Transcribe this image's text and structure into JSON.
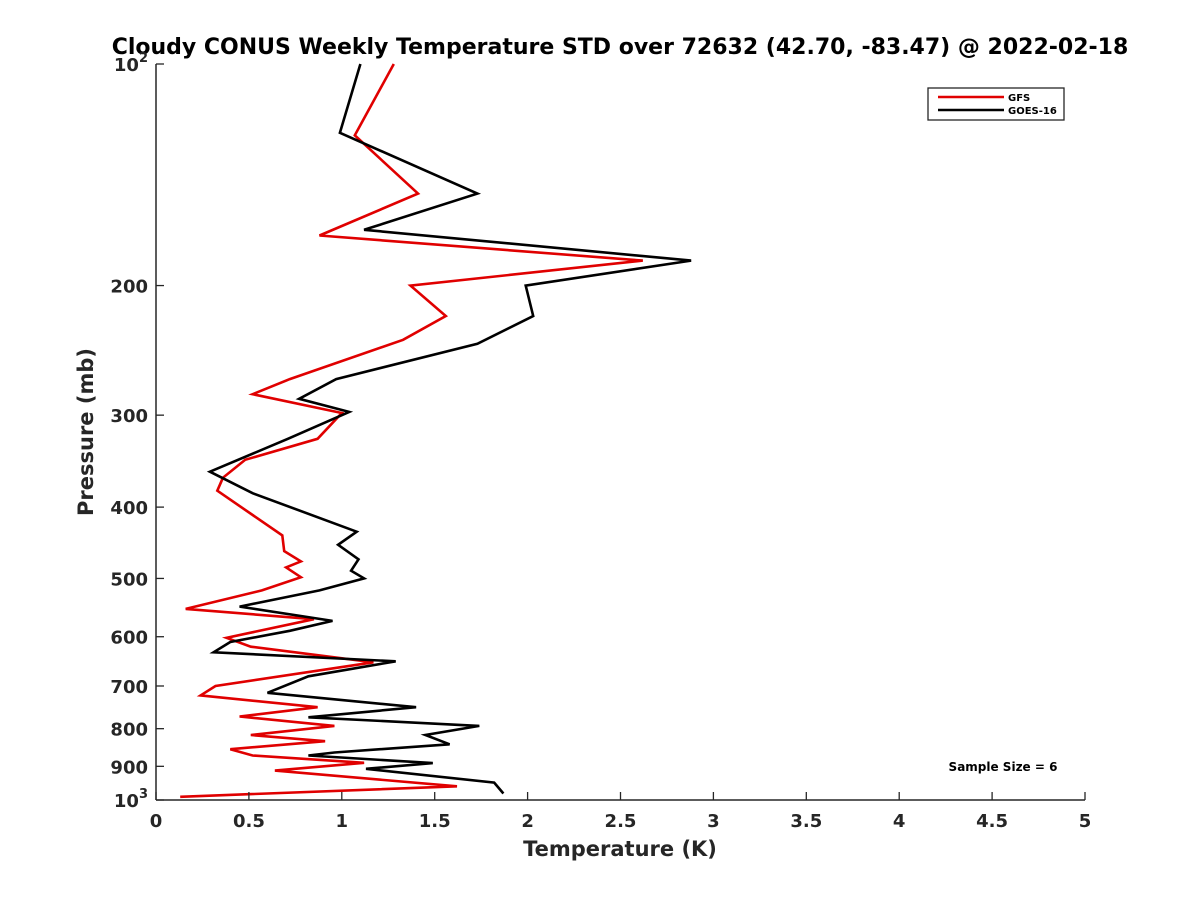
{
  "chart_data": {
    "type": "line",
    "title": "Cloudy CONUS Weekly Temperature STD over 72632 (42.70, -83.47) @ 2022-02-18",
    "xlabel": "Temperature (K)",
    "ylabel": "Pressure (mb)",
    "xlim": [
      0,
      5
    ],
    "ylim": [
      100,
      1000
    ],
    "y_scale": "log",
    "y_reversed": true,
    "x_ticks": [
      0,
      0.5,
      1,
      1.5,
      2,
      2.5,
      3,
      3.5,
      4,
      4.5,
      5
    ],
    "x_tick_labels": [
      "0",
      "0.5",
      "1",
      "1.5",
      "2",
      "2.5",
      "3",
      "3.5",
      "4",
      "4.5",
      "5"
    ],
    "y_ticks": [
      100,
      200,
      300,
      400,
      500,
      600,
      700,
      800,
      900,
      1000
    ],
    "y_tick_labels": [
      {
        "base": "10",
        "exp": "2"
      },
      {
        "base": "200",
        "exp": ""
      },
      {
        "base": "300",
        "exp": ""
      },
      {
        "base": "400",
        "exp": ""
      },
      {
        "base": "500",
        "exp": ""
      },
      {
        "base": "600",
        "exp": ""
      },
      {
        "base": "700",
        "exp": ""
      },
      {
        "base": "800",
        "exp": ""
      },
      {
        "base": "900",
        "exp": ""
      },
      {
        "base": "10",
        "exp": "3"
      }
    ],
    "grid": false,
    "legend_position": "top-right",
    "annotation": "Sample Size = 6",
    "series": [
      {
        "name": "GFS",
        "color": "#e00000",
        "points": [
          [
            1.28,
            100
          ],
          [
            1.07,
            125
          ],
          [
            1.41,
            150
          ],
          [
            0.88,
            171
          ],
          [
            2.62,
            185
          ],
          [
            1.37,
            200
          ],
          [
            1.56,
            220
          ],
          [
            1.33,
            237
          ],
          [
            0.72,
            268
          ],
          [
            0.52,
            281
          ],
          [
            1.0,
            298
          ],
          [
            0.87,
            323
          ],
          [
            0.48,
            345
          ],
          [
            0.36,
            365
          ],
          [
            0.33,
            380
          ],
          [
            0.68,
            437
          ],
          [
            0.69,
            459
          ],
          [
            0.78,
            474
          ],
          [
            0.7,
            483
          ],
          [
            0.78,
            498
          ],
          [
            0.57,
            519
          ],
          [
            0.16,
            550
          ],
          [
            0.85,
            568
          ],
          [
            0.38,
            602
          ],
          [
            0.51,
            619
          ],
          [
            1.17,
            650
          ],
          [
            0.32,
            700
          ],
          [
            0.24,
            721
          ],
          [
            0.87,
            748
          ],
          [
            0.45,
            770
          ],
          [
            0.96,
            793
          ],
          [
            0.51,
            816
          ],
          [
            0.91,
            832
          ],
          [
            0.4,
            853
          ],
          [
            0.52,
            870
          ],
          [
            1.12,
            890
          ],
          [
            0.64,
            912
          ],
          [
            1.62,
            958
          ],
          [
            0.13,
            990
          ]
        ]
      },
      {
        "name": "GOES-16",
        "color": "#000000",
        "points": [
          [
            1.1,
            100
          ],
          [
            0.99,
            124
          ],
          [
            1.73,
            150
          ],
          [
            1.12,
            168
          ],
          [
            2.88,
            185
          ],
          [
            1.99,
            200
          ],
          [
            2.03,
            220
          ],
          [
            1.73,
            240
          ],
          [
            0.97,
            268
          ],
          [
            0.77,
            285
          ],
          [
            1.04,
            297
          ],
          [
            0.71,
            323
          ],
          [
            0.29,
            358
          ],
          [
            0.52,
            383
          ],
          [
            1.08,
            432
          ],
          [
            0.98,
            450
          ],
          [
            1.09,
            471
          ],
          [
            1.05,
            488
          ],
          [
            1.12,
            500
          ],
          [
            0.88,
            519
          ],
          [
            0.45,
            546
          ],
          [
            0.95,
            571
          ],
          [
            0.72,
            589
          ],
          [
            0.4,
            610
          ],
          [
            0.31,
            630
          ],
          [
            1.29,
            648
          ],
          [
            0.82,
            679
          ],
          [
            0.6,
            715
          ],
          [
            1.4,
            748
          ],
          [
            0.82,
            772
          ],
          [
            1.74,
            793
          ],
          [
            1.45,
            816
          ],
          [
            1.58,
            840
          ],
          [
            0.96,
            862
          ],
          [
            0.82,
            870
          ],
          [
            1.49,
            891
          ],
          [
            1.13,
            907
          ],
          [
            1.82,
            947
          ],
          [
            1.87,
            980
          ]
        ]
      }
    ]
  }
}
